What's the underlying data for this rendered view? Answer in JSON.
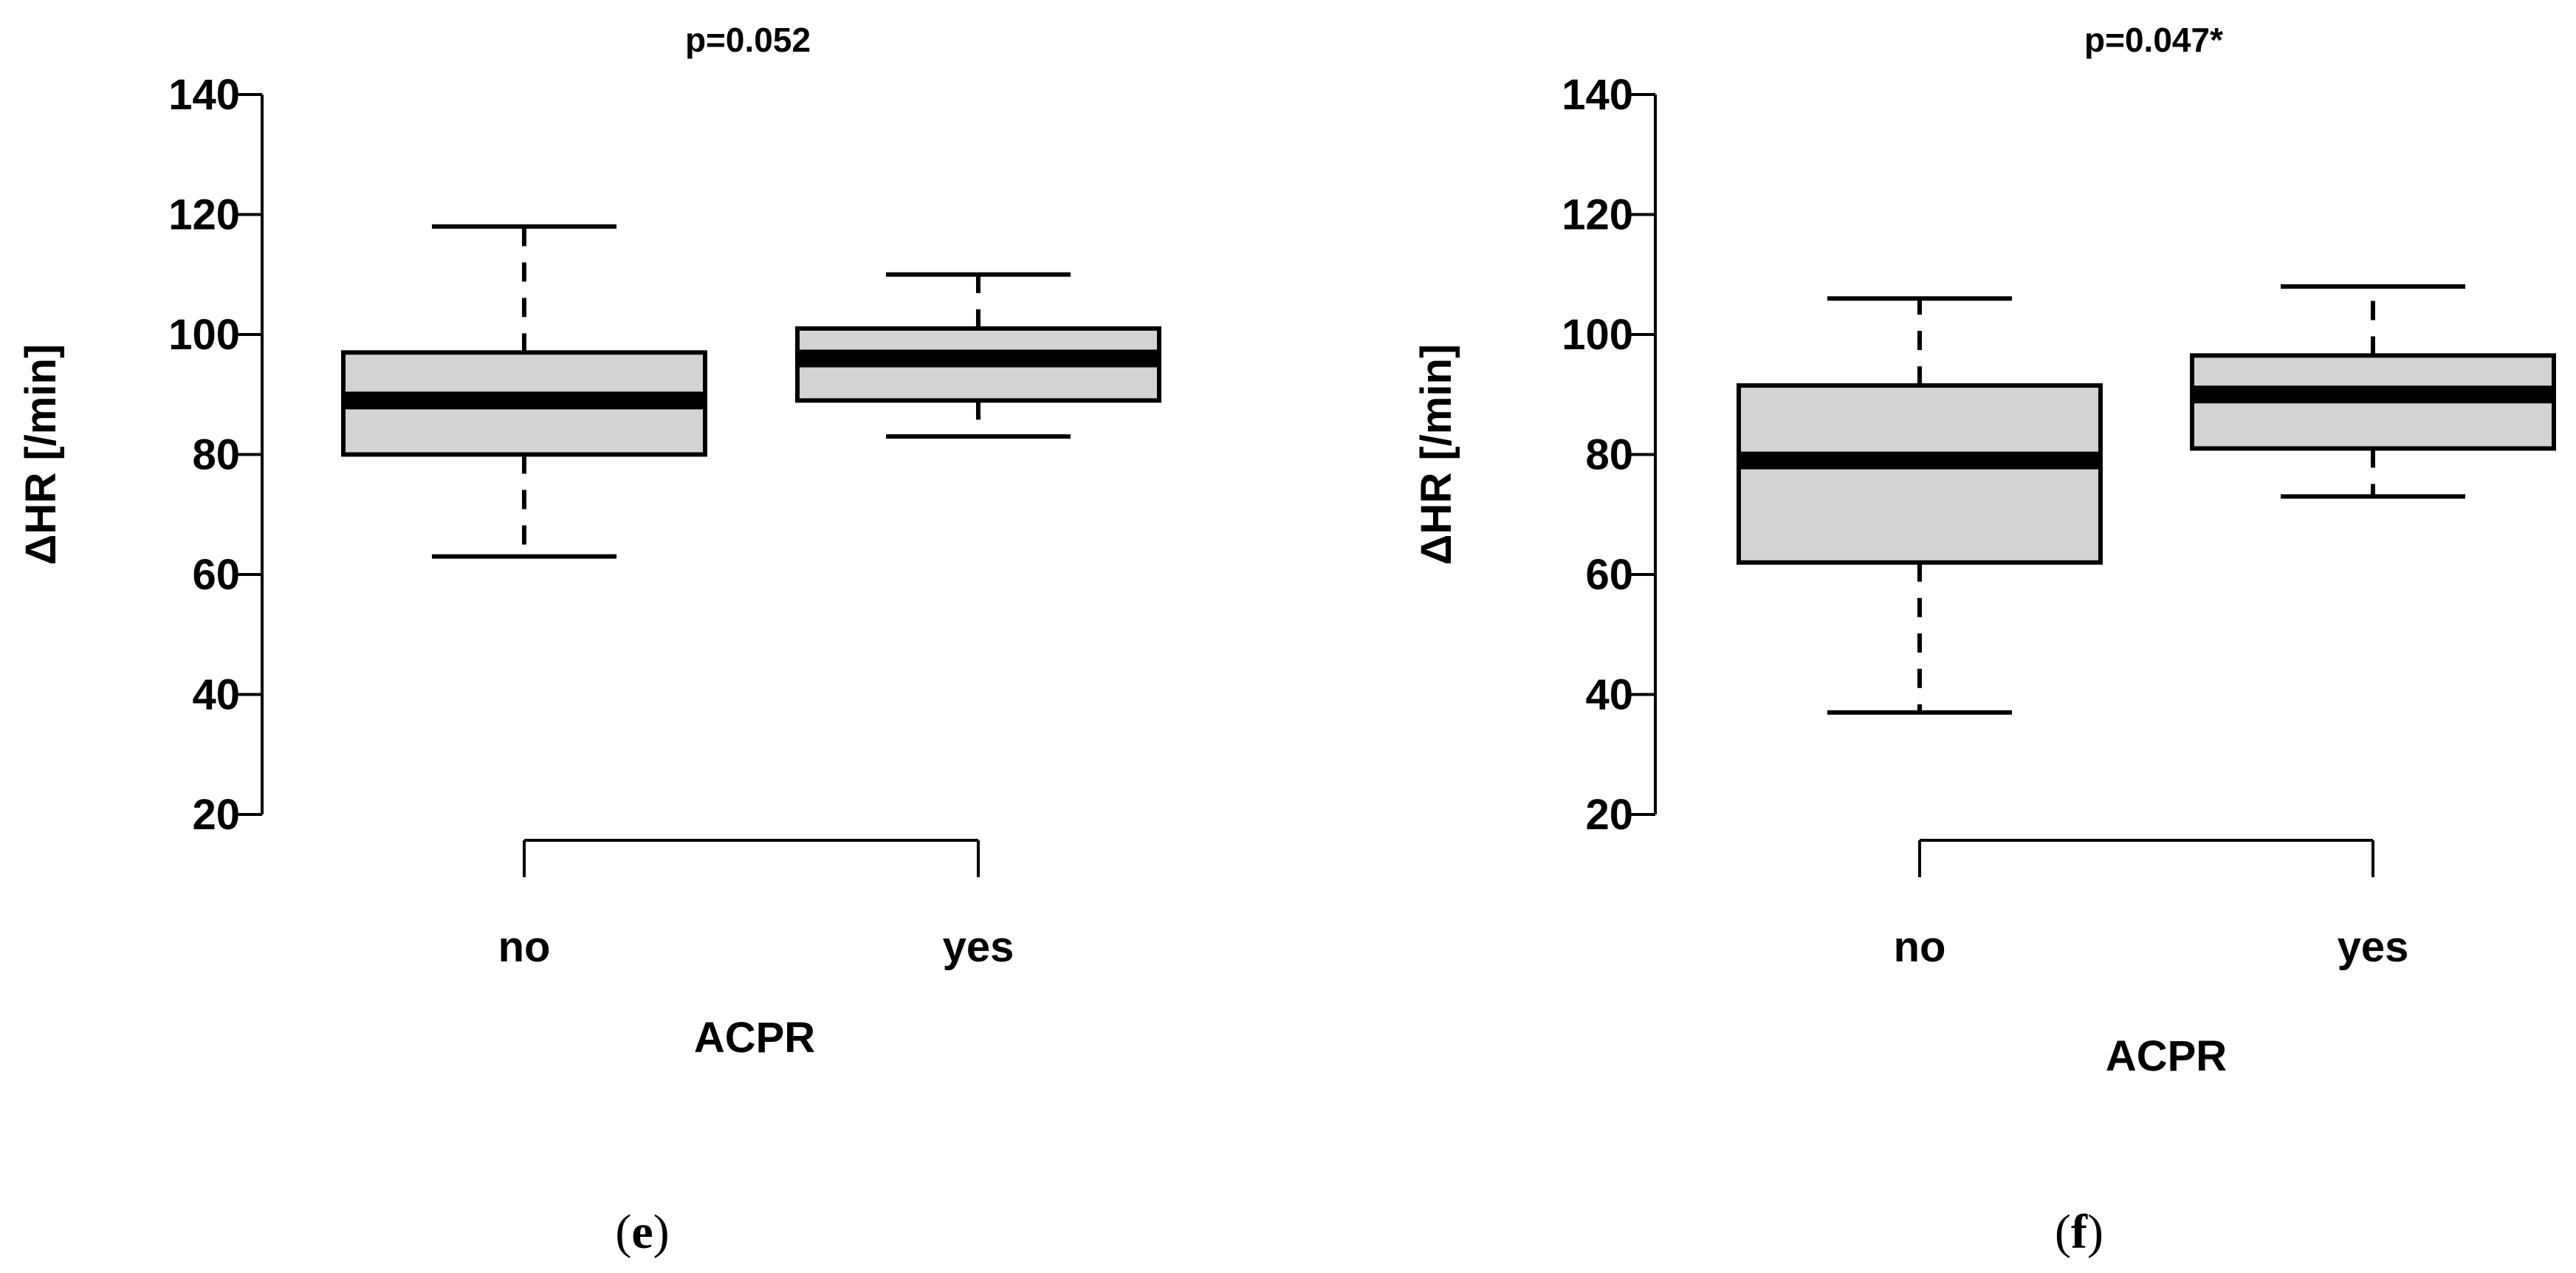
{
  "chart_data": [
    {
      "type": "box",
      "panel": "e",
      "title": "p=0.052",
      "xlabel": "ACPR",
      "ylabel": "ΔHR [/min]",
      "ylim": [
        20,
        140
      ],
      "yticks": [
        20,
        40,
        60,
        80,
        100,
        120,
        140
      ],
      "categories": [
        "no",
        "yes"
      ],
      "boxes": [
        {
          "name": "no",
          "whisker_low": 63,
          "q1": 80,
          "median": 89,
          "q3": 97,
          "whisker_high": 118
        },
        {
          "name": "yes",
          "whisker_low": 83,
          "q1": 89,
          "median": 96,
          "q3": 101,
          "whisker_high": 110
        }
      ]
    },
    {
      "type": "box",
      "panel": "f",
      "title": "p=0.047*",
      "xlabel": "ACPR",
      "ylabel": "ΔHR [/min]",
      "ylim": [
        20,
        140
      ],
      "yticks": [
        20,
        40,
        60,
        80,
        100,
        120,
        140
      ],
      "categories": [
        "no",
        "yes"
      ],
      "boxes": [
        {
          "name": "no",
          "whisker_low": 37,
          "q1": 62,
          "median": 79,
          "q3": 91.5,
          "whisker_high": 106
        },
        {
          "name": "yes",
          "whisker_low": 73,
          "q1": 81,
          "median": 90,
          "q3": 96.5,
          "whisker_high": 108
        }
      ]
    }
  ],
  "colors": {
    "box_fill": "#d3d3d3",
    "stroke": "#000000"
  }
}
